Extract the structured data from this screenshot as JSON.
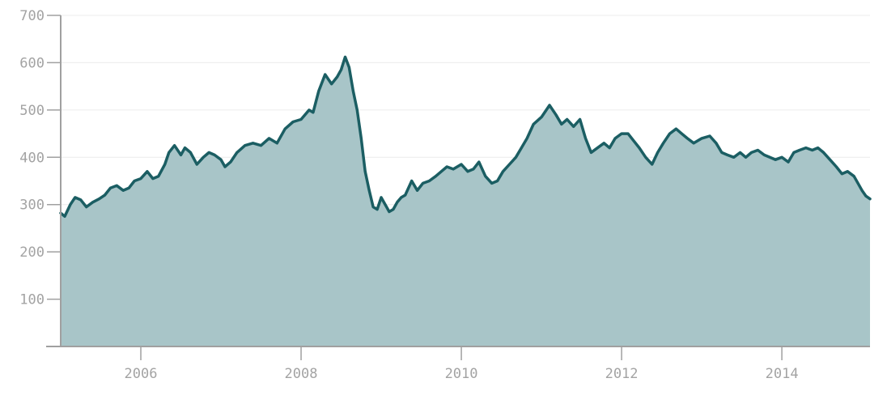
{
  "chart_data": {
    "type": "area",
    "title": "",
    "xlabel": "",
    "ylabel": "",
    "xlim": [
      2005.0,
      2015.1
    ],
    "ylim": [
      0,
      700
    ],
    "grid": true,
    "legend": "none",
    "y_ticks": [
      {
        "value": 100,
        "label": "100"
      },
      {
        "value": 200,
        "label": "200"
      },
      {
        "value": 300,
        "label": "300"
      },
      {
        "value": 400,
        "label": "400"
      },
      {
        "value": 500,
        "label": "500"
      },
      {
        "value": 600,
        "label": "600"
      },
      {
        "value": 700,
        "label": "700"
      }
    ],
    "x_ticks": [
      {
        "value": 2006,
        "label": "2006"
      },
      {
        "value": 2008,
        "label": "2008"
      },
      {
        "value": 2010,
        "label": "2010"
      },
      {
        "value": 2012,
        "label": "2012"
      },
      {
        "value": 2014,
        "label": "2014"
      }
    ],
    "colors": {
      "line": "#1b5e63",
      "fill": "#a8c5c8",
      "axis": "#a0a0a0",
      "grid": "#ececec",
      "tick_text": "#a3a3a3"
    },
    "series": [
      {
        "x": [
          2005.0,
          2005.05,
          2005.12,
          2005.18,
          2005.25,
          2005.32,
          2005.4,
          2005.48,
          2005.55,
          2005.62,
          2005.7,
          2005.78,
          2005.85,
          2005.92,
          2006.0,
          2006.08,
          2006.15,
          2006.22,
          2006.3,
          2006.35,
          2006.42,
          2006.5,
          2006.55,
          2006.62,
          2006.7,
          2006.78,
          2006.85,
          2006.92,
          2007.0,
          2007.05,
          2007.12,
          2007.2,
          2007.3,
          2007.4,
          2007.5,
          2007.6,
          2007.7,
          2007.8,
          2007.9,
          2008.0,
          2008.1,
          2008.15,
          2008.22,
          2008.3,
          2008.38,
          2008.45,
          2008.5,
          2008.55,
          2008.6,
          2008.65,
          2008.7,
          2008.75,
          2008.8,
          2008.85,
          2008.9,
          2008.95,
          2009.0,
          2009.05,
          2009.1,
          2009.15,
          2009.2,
          2009.25,
          2009.3,
          2009.38,
          2009.45,
          2009.52,
          2009.6,
          2009.68,
          2009.75,
          2009.82,
          2009.9,
          2010.0,
          2010.08,
          2010.15,
          2010.22,
          2010.3,
          2010.38,
          2010.45,
          2010.52,
          2010.6,
          2010.68,
          2010.75,
          2010.82,
          2010.9,
          2011.0,
          2011.1,
          2011.18,
          2011.25,
          2011.32,
          2011.4,
          2011.48,
          2011.55,
          2011.62,
          2011.7,
          2011.78,
          2011.85,
          2011.92,
          2012.0,
          2012.08,
          2012.15,
          2012.22,
          2012.3,
          2012.38,
          2012.45,
          2012.52,
          2012.6,
          2012.68,
          2012.75,
          2012.82,
          2012.9,
          2013.0,
          2013.1,
          2013.18,
          2013.25,
          2013.32,
          2013.4,
          2013.48,
          2013.55,
          2013.62,
          2013.7,
          2013.78,
          2013.85,
          2013.92,
          2014.0,
          2014.08,
          2014.15,
          2014.22,
          2014.3,
          2014.38,
          2014.45,
          2014.52,
          2014.6,
          2014.68,
          2014.75,
          2014.82,
          2014.9,
          2015.0,
          2015.05,
          2015.1
        ],
        "values": [
          282,
          275,
          300,
          315,
          310,
          295,
          305,
          312,
          320,
          335,
          340,
          330,
          335,
          350,
          355,
          370,
          355,
          360,
          385,
          410,
          425,
          405,
          420,
          410,
          385,
          400,
          410,
          405,
          395,
          380,
          390,
          410,
          425,
          430,
          425,
          440,
          430,
          460,
          475,
          480,
          500,
          495,
          540,
          575,
          555,
          570,
          585,
          612,
          590,
          540,
          500,
          440,
          370,
          330,
          295,
          290,
          315,
          300,
          285,
          290,
          305,
          315,
          320,
          350,
          330,
          345,
          350,
          360,
          370,
          380,
          375,
          385,
          370,
          375,
          390,
          360,
          345,
          350,
          370,
          385,
          400,
          420,
          440,
          470,
          485,
          510,
          490,
          470,
          480,
          465,
          480,
          440,
          410,
          420,
          430,
          420,
          440,
          450,
          450,
          435,
          420,
          400,
          385,
          410,
          430,
          450,
          460,
          450,
          440,
          430,
          440,
          445,
          430,
          410,
          405,
          400,
          410,
          400,
          410,
          415,
          405,
          400,
          395,
          400,
          390,
          410,
          415,
          420,
          415,
          420,
          410,
          395,
          380,
          365,
          370,
          360,
          330,
          318,
          312
        ]
      }
    ]
  }
}
